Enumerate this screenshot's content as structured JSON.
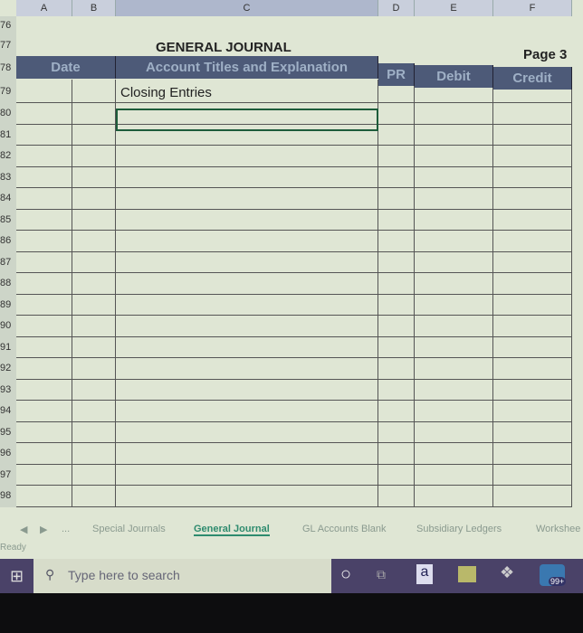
{
  "columns": [
    "A",
    "B",
    "C",
    "D",
    "E",
    "F"
  ],
  "rows": [
    "76",
    "77",
    "78",
    "79",
    "80",
    "81",
    "82",
    "83",
    "84",
    "85",
    "86",
    "87",
    "88",
    "89",
    "90",
    "91",
    "92",
    "93",
    "94",
    "95",
    "96",
    "97",
    "98"
  ],
  "journal": {
    "title": "GENERAL JOURNAL",
    "page": "Page 3",
    "headers": {
      "date": "Date",
      "account": "Account Titles and Explanation",
      "pr": "PR",
      "debit": "Debit",
      "credit": "Credit"
    },
    "first_entry": "Closing Entries"
  },
  "sheet_tabs": [
    {
      "label": "Special Journals",
      "active": false
    },
    {
      "label": "General Journal",
      "active": true
    },
    {
      "label": "GL Accounts Blank",
      "active": false
    },
    {
      "label": "Subsidiary Ledgers",
      "active": false
    },
    {
      "label": "Workshee",
      "active": false
    }
  ],
  "tab_nav": {
    "more": "..."
  },
  "status": "Ready",
  "taskbar": {
    "search_placeholder": "Type here to search",
    "badge": "99+",
    "amazon": "a"
  },
  "colors": {
    "header_fill": "#4d5a78",
    "accent_tab": "#2e8b6e",
    "taskbar_tray": "#4a4268"
  }
}
